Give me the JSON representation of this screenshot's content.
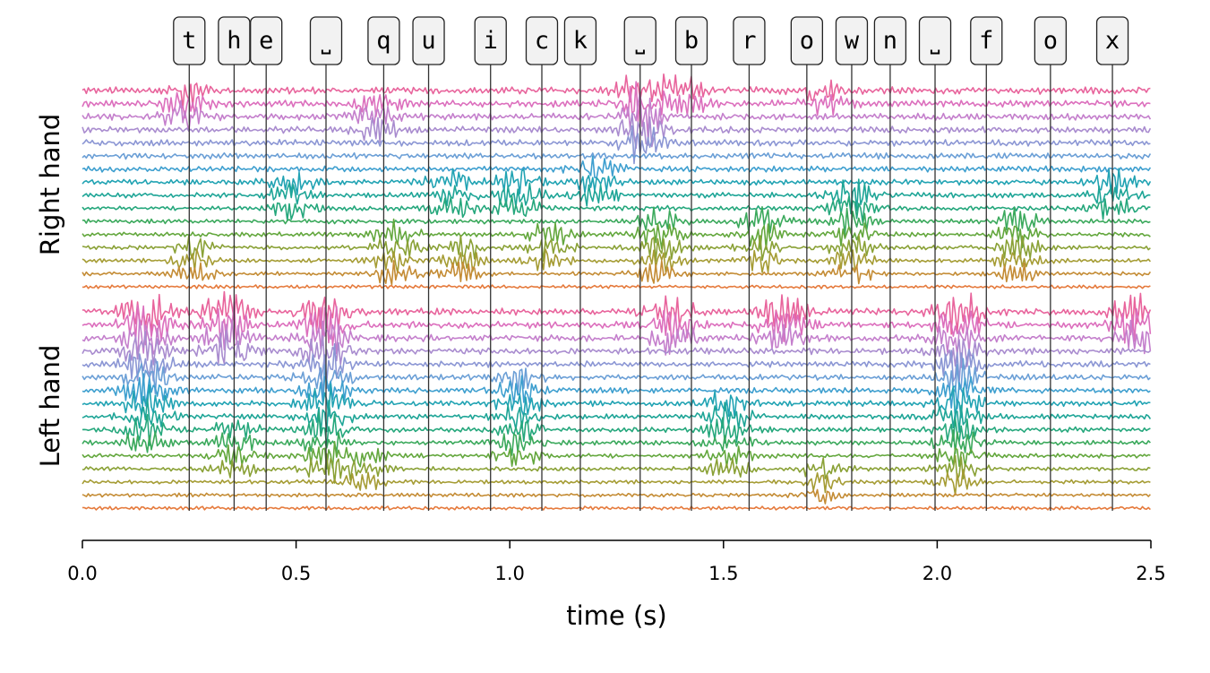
{
  "chart_data": {
    "type": "line",
    "xlabel": "time (s)",
    "xlim": [
      0.0,
      2.5
    ],
    "xticks": [
      "0.0",
      "0.5",
      "1.0",
      "1.5",
      "2.0",
      "2.5"
    ],
    "group_labels": [
      "Right hand",
      "Left hand"
    ],
    "channels_per_group": 16,
    "grid": false,
    "legend": "none",
    "palette": [
      "#e8649c",
      "#dc6fbd",
      "#c47fcc",
      "#a98ccf",
      "#8b96d4",
      "#6b9fd6",
      "#3e9fcf",
      "#21a3b3",
      "#1ea597",
      "#25a77c",
      "#3ba95c",
      "#63a73d",
      "#8aa136",
      "#a59c34",
      "#c48c35",
      "#e57a3c"
    ],
    "keystrokes": [
      {
        "key": "t",
        "time": 0.25
      },
      {
        "key": "h",
        "time": 0.355
      },
      {
        "key": "e",
        "time": 0.43
      },
      {
        "key": "␣",
        "time": 0.57
      },
      {
        "key": "q",
        "time": 0.705
      },
      {
        "key": "u",
        "time": 0.81
      },
      {
        "key": "i",
        "time": 0.955
      },
      {
        "key": "c",
        "time": 1.075
      },
      {
        "key": "k",
        "time": 1.165
      },
      {
        "key": "␣",
        "time": 1.305
      },
      {
        "key": "b",
        "time": 1.425
      },
      {
        "key": "r",
        "time": 1.56
      },
      {
        "key": "o",
        "time": 1.695
      },
      {
        "key": "w",
        "time": 1.8
      },
      {
        "key": "n",
        "time": 1.89
      },
      {
        "key": "␣",
        "time": 1.995
      },
      {
        "key": "f",
        "time": 2.115
      },
      {
        "key": "o",
        "time": 2.265
      },
      {
        "key": "x",
        "time": 2.41
      }
    ],
    "bursts": {
      "right": [
        {
          "center": 0.24,
          "channels": [
            0,
            1,
            2
          ],
          "amp": 1.6
        },
        {
          "center": 0.26,
          "channels": [
            12,
            13,
            14
          ],
          "amp": 2.2
        },
        {
          "center": 0.49,
          "channels": [
            7,
            8,
            9
          ],
          "amp": 1.7
        },
        {
          "center": 0.73,
          "channels": [
            11,
            12,
            13,
            14
          ],
          "amp": 2.3
        },
        {
          "center": 0.69,
          "channels": [
            1,
            2,
            3
          ],
          "amp": 1.3
        },
        {
          "center": 0.86,
          "channels": [
            7,
            8,
            9
          ],
          "amp": 1.6
        },
        {
          "center": 0.89,
          "channels": [
            12,
            13,
            14
          ],
          "amp": 2.2
        },
        {
          "center": 1.02,
          "channels": [
            7,
            8,
            9
          ],
          "amp": 1.8
        },
        {
          "center": 1.09,
          "channels": [
            11,
            12,
            13
          ],
          "amp": 2.2
        },
        {
          "center": 1.2,
          "channels": [
            6,
            7,
            8
          ],
          "amp": 1.6
        },
        {
          "center": 1.35,
          "channels": [
            10,
            11,
            12,
            13,
            14
          ],
          "amp": 2.4
        },
        {
          "center": 1.31,
          "channels": [
            0,
            1,
            2,
            3,
            4
          ],
          "amp": 2.6
        },
        {
          "center": 1.41,
          "channels": [
            0,
            1
          ],
          "amp": 1.4
        },
        {
          "center": 1.59,
          "channels": [
            10,
            11,
            12,
            13
          ],
          "amp": 2.3
        },
        {
          "center": 1.8,
          "channels": [
            8,
            9,
            10,
            11,
            12,
            13,
            14
          ],
          "amp": 2.4
        },
        {
          "center": 1.73,
          "channels": [
            0,
            1
          ],
          "amp": 1.3
        },
        {
          "center": 2.19,
          "channels": [
            10,
            11,
            12,
            13,
            14
          ],
          "amp": 2.3
        },
        {
          "center": 2.41,
          "channels": [
            7,
            8,
            9
          ],
          "amp": 1.7
        }
      ],
      "left": [
        {
          "center": 0.15,
          "channels": [
            0,
            1,
            2,
            3,
            4,
            5,
            6,
            7,
            8,
            9,
            10
          ],
          "amp": 2.4
        },
        {
          "center": 0.34,
          "channels": [
            0,
            1,
            2,
            3
          ],
          "amp": 2.3
        },
        {
          "center": 0.36,
          "channels": [
            9,
            10,
            11,
            12
          ],
          "amp": 1.8
        },
        {
          "center": 0.57,
          "channels": [
            0,
            1,
            2,
            3,
            4,
            5,
            6,
            7,
            8,
            9,
            10,
            11,
            12
          ],
          "amp": 2.4
        },
        {
          "center": 0.66,
          "channels": [
            11,
            12,
            13
          ],
          "amp": 1.7
        },
        {
          "center": 1.02,
          "channels": [
            5,
            6,
            7,
            8,
            9,
            10,
            11
          ],
          "amp": 1.9
        },
        {
          "center": 1.38,
          "channels": [
            0,
            1,
            2
          ],
          "amp": 1.9
        },
        {
          "center": 1.51,
          "channels": [
            7,
            8,
            9,
            10,
            11,
            12
          ],
          "amp": 2.0
        },
        {
          "center": 1.64,
          "channels": [
            0,
            1,
            2
          ],
          "amp": 1.9
        },
        {
          "center": 1.73,
          "channels": [
            12,
            13,
            14
          ],
          "amp": 2.0
        },
        {
          "center": 2.05,
          "channels": [
            0,
            1,
            2,
            3,
            4,
            5,
            6,
            7,
            8,
            9,
            10,
            11,
            12,
            13
          ],
          "amp": 2.2
        },
        {
          "center": 2.46,
          "channels": [
            0,
            1,
            2
          ],
          "amp": 2.0
        }
      ]
    }
  }
}
